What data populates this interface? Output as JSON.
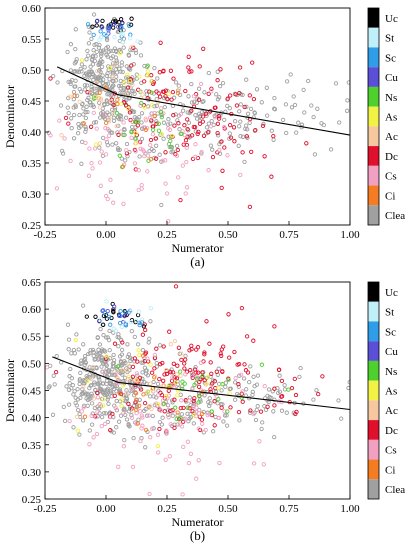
{
  "classes": [
    {
      "name": "Uc",
      "color": "#000000"
    },
    {
      "name": "St",
      "color": "#bfeff9"
    },
    {
      "name": "Sc",
      "color": "#2f9ee8"
    },
    {
      "name": "Cu",
      "color": "#5a4fd6"
    },
    {
      "name": "Ns",
      "color": "#4ed12c"
    },
    {
      "name": "As",
      "color": "#f2f244"
    },
    {
      "name": "Ac",
      "color": "#f7c8a0"
    },
    {
      "name": "Dc",
      "color": "#e0102c"
    },
    {
      "name": "Cs",
      "color": "#f2a0c2"
    },
    {
      "name": "Ci",
      "color": "#f57c20"
    },
    {
      "name": "Clear",
      "color": "#a0a0a0"
    }
  ],
  "chart_data": [
    {
      "type": "scatter",
      "panel_label": "(a)",
      "xlabel": "Numerator",
      "ylabel": "Denominator",
      "xlim": [
        -0.25,
        1.0
      ],
      "ylim": [
        0.25,
        0.6
      ],
      "xticks": [
        -0.25,
        0.0,
        0.25,
        0.5,
        0.75,
        1.0
      ],
      "xtick_labels": [
        "-0.25",
        "0.00",
        "0.25",
        "0.50",
        "0.75",
        "1.00"
      ],
      "yticks": [
        0.25,
        0.3,
        0.35,
        0.4,
        0.45,
        0.5,
        0.55,
        0.6
      ],
      "ytick_labels": [
        "0.25",
        "0.30",
        "0.35",
        "0.40",
        "0.45",
        "0.50",
        "0.55",
        "0.60"
      ],
      "fit_line": [
        {
          "x": -0.2,
          "y": 0.505
        },
        {
          "x": 0.05,
          "y": 0.46
        },
        {
          "x": 1.0,
          "y": 0.395
        }
      ],
      "series": [
        {
          "name": "Clear",
          "clusters": [
            {
              "cx": 0.0,
              "cy": 0.48,
              "sx": 0.09,
              "sy": 0.04,
              "n": 340
            },
            {
              "cx": 0.45,
              "cy": 0.43,
              "sx": 0.25,
              "sy": 0.03,
              "n": 170
            },
            {
              "cx": 0.15,
              "cy": 0.4,
              "sx": 0.15,
              "sy": 0.04,
              "n": 60
            }
          ]
        },
        {
          "name": "Dc",
          "clusters": [
            {
              "cx": 0.3,
              "cy": 0.44,
              "sx": 0.18,
              "sy": 0.05,
              "n": 120
            },
            {
              "cx": 0.55,
              "cy": 0.38,
              "sx": 0.15,
              "sy": 0.03,
              "n": 20
            }
          ]
        },
        {
          "name": "Cs",
          "clusters": [
            {
              "cx": 0.2,
              "cy": 0.38,
              "sx": 0.18,
              "sy": 0.05,
              "n": 90
            }
          ]
        },
        {
          "name": "Ns",
          "clusters": [
            {
              "cx": 0.12,
              "cy": 0.4,
              "sx": 0.09,
              "sy": 0.04,
              "n": 22
            }
          ]
        },
        {
          "name": "As",
          "clusters": [
            {
              "cx": 0.1,
              "cy": 0.45,
              "sx": 0.08,
              "sy": 0.04,
              "n": 22
            }
          ]
        },
        {
          "name": "Ac",
          "clusters": [
            {
              "cx": 0.05,
              "cy": 0.46,
              "sx": 0.1,
              "sy": 0.04,
              "n": 28
            }
          ]
        },
        {
          "name": "Ci",
          "clusters": [
            {
              "cx": 0.1,
              "cy": 0.44,
              "sx": 0.1,
              "sy": 0.04,
              "n": 12
            }
          ]
        },
        {
          "name": "Uc",
          "clusters": [
            {
              "cx": 0.03,
              "cy": 0.575,
              "sx": 0.05,
              "sy": 0.006,
              "n": 18
            }
          ]
        },
        {
          "name": "Sc",
          "clusters": [
            {
              "cx": 0.03,
              "cy": 0.565,
              "sx": 0.05,
              "sy": 0.008,
              "n": 12
            }
          ]
        },
        {
          "name": "Cu",
          "clusters": [
            {
              "cx": 0.03,
              "cy": 0.57,
              "sx": 0.04,
              "sy": 0.006,
              "n": 8
            }
          ]
        },
        {
          "name": "St",
          "clusters": [
            {
              "cx": 0.05,
              "cy": 0.55,
              "sx": 0.06,
              "sy": 0.01,
              "n": 10
            }
          ]
        }
      ]
    },
    {
      "type": "scatter",
      "panel_label": "(b)",
      "xlabel": "Numerator",
      "ylabel": "Denominator",
      "xlim": [
        -0.25,
        1.0
      ],
      "ylim": [
        0.25,
        0.65
      ],
      "xticks": [
        -0.25,
        0.0,
        0.25,
        0.5,
        0.75,
        1.0
      ],
      "xtick_labels": [
        "-0.25",
        "0.00",
        "0.25",
        "0.50",
        "0.75",
        "1.00"
      ],
      "yticks": [
        0.25,
        0.3,
        0.35,
        0.4,
        0.45,
        0.5,
        0.55,
        0.6,
        0.65
      ],
      "ytick_labels": [
        "0.25",
        "0.30",
        "0.35",
        "0.40",
        "0.45",
        "0.50",
        "0.55",
        "0.60",
        "0.65"
      ],
      "fit_line": [
        {
          "x": -0.22,
          "y": 0.512
        },
        {
          "x": 0.05,
          "y": 0.465
        },
        {
          "x": 1.0,
          "y": 0.415
        }
      ],
      "series": [
        {
          "name": "Clear",
          "clusters": [
            {
              "cx": 0.0,
              "cy": 0.48,
              "sx": 0.09,
              "sy": 0.04,
              "n": 330
            },
            {
              "cx": 0.45,
              "cy": 0.44,
              "sx": 0.25,
              "sy": 0.03,
              "n": 160
            },
            {
              "cx": 0.2,
              "cy": 0.4,
              "sx": 0.15,
              "sy": 0.03,
              "n": 50
            }
          ]
        },
        {
          "name": "Dc",
          "clusters": [
            {
              "cx": 0.3,
              "cy": 0.48,
              "sx": 0.15,
              "sy": 0.05,
              "n": 140
            },
            {
              "cx": 0.6,
              "cy": 0.44,
              "sx": 0.15,
              "sy": 0.03,
              "n": 25
            }
          ]
        },
        {
          "name": "Cs",
          "clusters": [
            {
              "cx": 0.25,
              "cy": 0.4,
              "sx": 0.2,
              "sy": 0.05,
              "n": 110
            }
          ]
        },
        {
          "name": "Ns",
          "clusters": [
            {
              "cx": 0.35,
              "cy": 0.44,
              "sx": 0.15,
              "sy": 0.03,
              "n": 25
            }
          ]
        },
        {
          "name": "As",
          "clusters": [
            {
              "cx": 0.2,
              "cy": 0.45,
              "sx": 0.15,
              "sy": 0.04,
              "n": 28
            }
          ]
        },
        {
          "name": "Ac",
          "clusters": [
            {
              "cx": 0.15,
              "cy": 0.47,
              "sx": 0.15,
              "sy": 0.04,
              "n": 28
            }
          ]
        },
        {
          "name": "Ci",
          "clusters": [
            {
              "cx": 0.15,
              "cy": 0.44,
              "sx": 0.15,
              "sy": 0.04,
              "n": 15
            }
          ]
        },
        {
          "name": "Uc",
          "clusters": [
            {
              "cx": 0.03,
              "cy": 0.585,
              "sx": 0.05,
              "sy": 0.01,
              "n": 20
            }
          ]
        },
        {
          "name": "Sc",
          "clusters": [
            {
              "cx": 0.05,
              "cy": 0.585,
              "sx": 0.05,
              "sy": 0.01,
              "n": 14
            }
          ]
        },
        {
          "name": "Cu",
          "clusters": [
            {
              "cx": 0.04,
              "cy": 0.59,
              "sx": 0.04,
              "sy": 0.008,
              "n": 8
            }
          ]
        },
        {
          "name": "St",
          "clusters": [
            {
              "cx": 0.08,
              "cy": 0.58,
              "sx": 0.06,
              "sy": 0.012,
              "n": 12
            }
          ]
        }
      ]
    }
  ]
}
